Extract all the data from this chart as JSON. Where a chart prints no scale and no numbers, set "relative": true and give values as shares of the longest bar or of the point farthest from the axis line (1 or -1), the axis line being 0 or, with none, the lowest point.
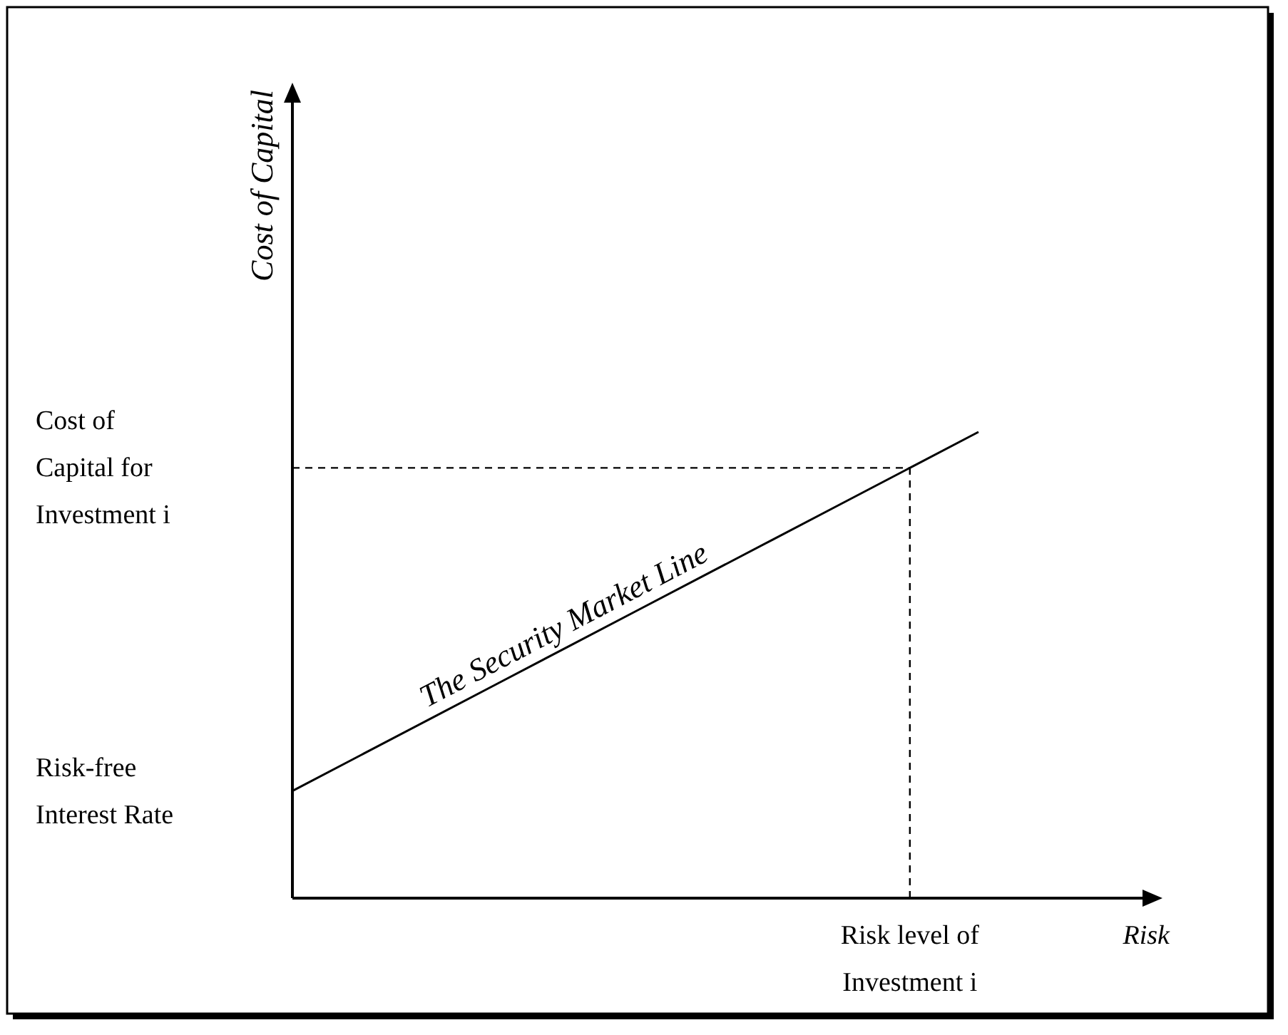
{
  "chart_data": {
    "type": "line",
    "xlabel": "Risk",
    "ylabel": "Cost of Capital",
    "line_style": "solid",
    "marker": "none",
    "relative": true,
    "categories": [
      null,
      null,
      null,
      null,
      null,
      null,
      null,
      null,
      null,
      null,
      null
    ],
    "series": [
      {
        "color": "#000000",
        "values": [
          0.23,
          0.307,
          0.384,
          0.461,
          0.538,
          0.615,
          0.692,
          0.769,
          0.846,
          0.923,
          1
        ]
      }
    ],
    "ref_lines": [
      {
        "axis": "y",
        "value": 0.923,
        "line_style": "dashed",
        "color": "#000000"
      }
    ],
    "annotations": [
      "Risk-free Interest Rate",
      "Cost of Capital for Investment i",
      "The Security Market Line",
      {
        "text": "Risk level of Investment i",
        "y": 0.923
      }
    ]
  }
}
